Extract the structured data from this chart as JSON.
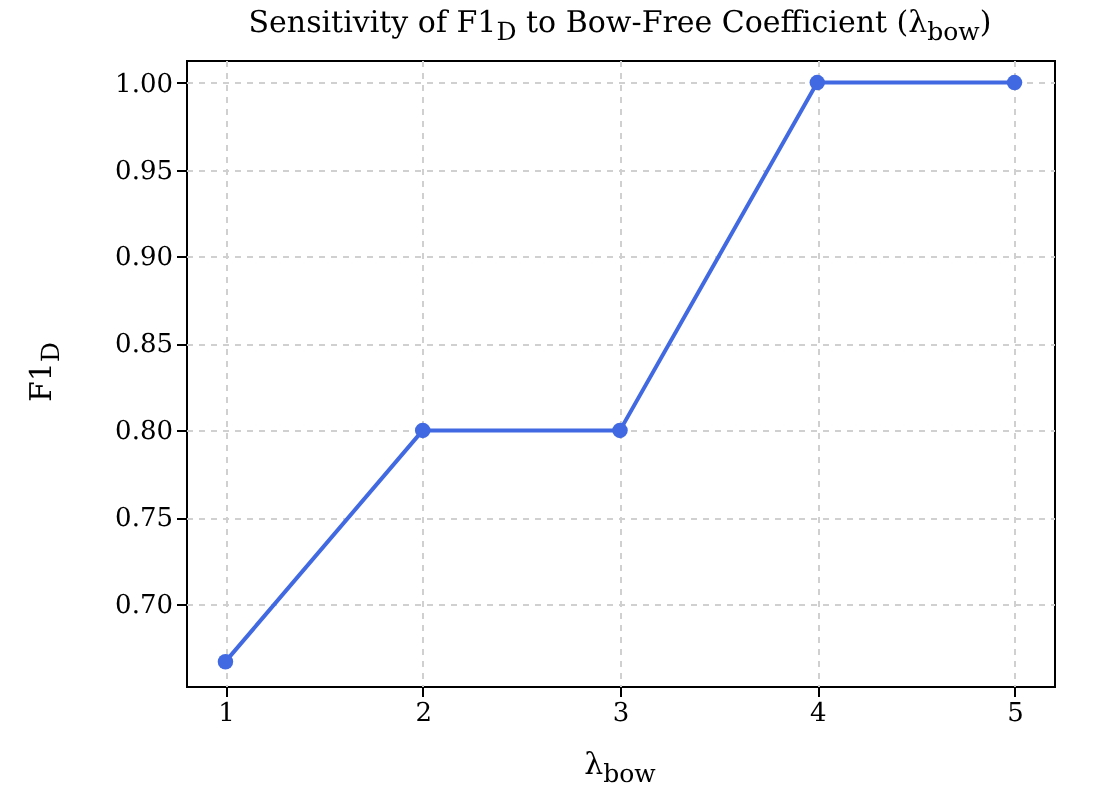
{
  "chart_data": {
    "type": "line",
    "title": "Sensitivity of F1$_{D}$ to Bow-Free Coefficient (λ$_{bow}$)",
    "xlabel": "λ$_{bow}$",
    "ylabel": "F1$_{D}$",
    "x": [
      1,
      2,
      3,
      4,
      5
    ],
    "series": [
      {
        "color": "#4169e1",
        "values": [
          0.667,
          0.8,
          0.8,
          1.0,
          1.0
        ]
      }
    ],
    "xlim": [
      0.8,
      5.2
    ],
    "xticks": [
      1,
      2,
      3,
      4,
      5
    ],
    "ylim": [
      0.653,
      1.013
    ],
    "yticks": [
      {
        "value": 0.7,
        "label": "0.70"
      },
      0.75,
      {
        "value": 0.8,
        "label": "0.80"
      },
      0.85,
      {
        "value": 0.9,
        "label": "0.90"
      },
      0.95,
      {
        "value": 1.0,
        "label": "1.00"
      }
    ],
    "grid": true,
    "marker": "circle",
    "line_style": "solid"
  }
}
